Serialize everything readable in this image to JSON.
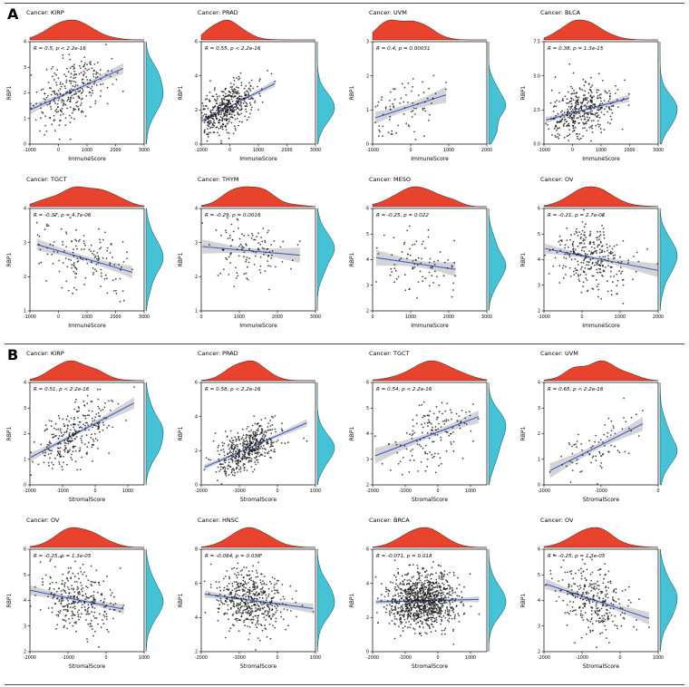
{
  "figure": {
    "sections": [
      {
        "id": "A",
        "label": "A"
      },
      {
        "id": "B",
        "label": "B"
      }
    ]
  },
  "colors": {
    "top_density": "#e8432d",
    "right_density": "#45c2d5",
    "regression_line": "#3f5fd1",
    "ci_band": "#b0b0b0",
    "points": "#1a1a1a"
  },
  "chart_data": [
    {
      "section": "A",
      "type": "scatter",
      "title": "Cancer: KIRP",
      "annotation": "R = 0.5, p < 2.2e-16",
      "r": 0.5,
      "p_label": "< 2.2e-16",
      "xlabel": "ImmuneScore",
      "ylabel": "RBP1",
      "xlim": [
        -1000,
        3000
      ],
      "xticks": [
        -1000,
        0,
        1000,
        2000,
        3000
      ],
      "ylim": [
        0,
        4
      ],
      "yticks": [
        0,
        1,
        2,
        3,
        4
      ],
      "n": 285,
      "cloud": [
        0.35,
        0.5,
        0.17,
        0.17
      ]
    },
    {
      "section": "A",
      "type": "scatter",
      "title": "Cancer: PRAD",
      "annotation": "R = 0.55, p < 2.2e-16",
      "r": 0.55,
      "p_label": "< 2.2e-16",
      "xlabel": "ImmuneScore",
      "ylabel": "RBP1",
      "xlim": [
        -1000,
        3000
      ],
      "xticks": [
        -1000,
        0,
        1000,
        2000,
        3000
      ],
      "ylim": [
        0,
        6
      ],
      "yticks": [
        0,
        2,
        4,
        6
      ],
      "n": 480,
      "cloud": [
        0.22,
        0.35,
        0.13,
        0.13
      ]
    },
    {
      "section": "A",
      "type": "scatter",
      "title": "Cancer: UVM",
      "annotation": "R = 0.4, p = 0.00031",
      "r": 0.4,
      "p_label": "= 0.00031",
      "xlabel": "ImmuneScore",
      "ylabel": "RBP1",
      "xlim": [
        -1000,
        2000
      ],
      "xticks": [
        -1000,
        0,
        1000,
        2000
      ],
      "ylim": [
        0,
        3
      ],
      "yticks": [
        0,
        1,
        2,
        3
      ],
      "n": 80,
      "cloud": [
        0.25,
        0.35,
        0.16,
        0.16
      ]
    },
    {
      "section": "A",
      "type": "scatter",
      "title": "Cancer: BLCA",
      "annotation": "R = 0.38, p = 1.3e-15",
      "r": 0.38,
      "p_label": "= 1.3e-15",
      "xlabel": "ImmuneScore",
      "ylabel": "RBP1",
      "xlim": [
        -1000,
        3000
      ],
      "xticks": [
        -1000,
        0,
        1000,
        2000,
        3000
      ],
      "ylim": [
        0,
        7.5
      ],
      "yticks": [
        0,
        2.5,
        5,
        7.5
      ],
      "n": 400,
      "cloud": [
        0.33,
        0.33,
        0.15,
        0.14
      ]
    },
    {
      "section": "A",
      "type": "scatter",
      "title": "Cancer: TGCT",
      "annotation": "R = -0.37, p = 4.7e-06",
      "r": -0.37,
      "p_label": "= 4.7e-06",
      "xlabel": "ImmuneScore",
      "ylabel": "RBP1",
      "xlim": [
        -1000,
        3000
      ],
      "xticks": [
        -1000,
        0,
        1000,
        2000,
        3000
      ],
      "ylim": [
        1,
        4
      ],
      "yticks": [
        1,
        2,
        3,
        4
      ],
      "n": 150,
      "cloud": [
        0.45,
        0.5,
        0.2,
        0.18
      ]
    },
    {
      "section": "A",
      "type": "scatter",
      "title": "Cancer: THYM",
      "annotation": "R = -0.29, p = 0.0016",
      "r": -0.29,
      "p_label": "= 0.0016",
      "xlabel": "ImmuneScore",
      "ylabel": "RBP1",
      "xlim": [
        0,
        3000
      ],
      "xticks": [
        0,
        1000,
        2000,
        3000
      ],
      "ylim": [
        1,
        4
      ],
      "yticks": [
        1,
        2,
        3,
        4
      ],
      "n": 120,
      "cloud": [
        0.42,
        0.58,
        0.18,
        0.16
      ]
    },
    {
      "section": "A",
      "type": "scatter",
      "title": "Cancer: MESO",
      "annotation": "R = -0.25, p = 0.022",
      "r": -0.25,
      "p_label": "= 0.022",
      "xlabel": "ImmuneScore",
      "ylabel": "RBP1",
      "xlim": [
        0,
        3000
      ],
      "xticks": [
        0,
        1000,
        2000,
        3000
      ],
      "ylim": [
        2,
        6
      ],
      "yticks": [
        2,
        3,
        4,
        5,
        6
      ],
      "n": 85,
      "cloud": [
        0.4,
        0.5,
        0.18,
        0.17
      ]
    },
    {
      "section": "A",
      "type": "scatter",
      "title": "Cancer: OV",
      "annotation": "R = -0.21, p = 2.7e-05",
      "r": -0.21,
      "p_label": "= 2.7e-05",
      "xlabel": "ImmuneScore",
      "ylabel": "RBP1",
      "xlim": [
        -1000,
        2000
      ],
      "xticks": [
        -1000,
        0,
        1000,
        2000
      ],
      "ylim": [
        2,
        6
      ],
      "yticks": [
        2,
        3,
        4,
        5,
        6
      ],
      "n": 300,
      "cloud": [
        0.43,
        0.5,
        0.16,
        0.16
      ]
    },
    {
      "section": "B",
      "type": "scatter",
      "title": "Cancer: KIRP",
      "annotation": "R = 0.51, p < 2.2e-16",
      "r": 0.51,
      "p_label": "< 2.2e-16",
      "xlabel": "StromalScore",
      "ylabel": "RBP1",
      "xlim": [
        -2000,
        1500
      ],
      "xticks": [
        -2000,
        -1000,
        0,
        1000
      ],
      "ylim": [
        0,
        4
      ],
      "yticks": [
        0,
        1,
        2,
        3,
        4
      ],
      "n": 285,
      "cloud": [
        0.4,
        0.5,
        0.16,
        0.17
      ]
    },
    {
      "section": "B",
      "type": "scatter",
      "title": "Cancer: PRAD",
      "annotation": "R = 0.58, p < 2.2e-16",
      "r": 0.58,
      "p_label": "< 2.2e-16",
      "xlabel": "StromalScore",
      "ylabel": "RBP1",
      "xlim": [
        -2000,
        1000
      ],
      "xticks": [
        -2000,
        -1000,
        0,
        1000
      ],
      "ylim": [
        0,
        6
      ],
      "yticks": [
        0,
        2,
        4,
        6
      ],
      "n": 480,
      "cloud": [
        0.4,
        0.35,
        0.14,
        0.13
      ]
    },
    {
      "section": "B",
      "type": "scatter",
      "title": "Cancer: TGCT",
      "annotation": "R = 0.54, p < 2.2e-16",
      "r": 0.54,
      "p_label": "< 2.2e-16",
      "xlabel": "StromalScore",
      "ylabel": "RBP1",
      "xlim": [
        -2000,
        1500
      ],
      "xticks": [
        -2000,
        -1000,
        0,
        1000
      ],
      "ylim": [
        2,
        6
      ],
      "yticks": [
        2,
        3,
        4,
        5,
        6
      ],
      "n": 150,
      "cloud": [
        0.5,
        0.5,
        0.2,
        0.18
      ]
    },
    {
      "section": "B",
      "type": "scatter",
      "title": "Cancer: UVM",
      "annotation": "R = 0.65, p < 2.2e-16",
      "r": 0.65,
      "p_label": "< 2.2e-16",
      "xlabel": "StromalScore",
      "ylabel": "RBP1",
      "xlim": [
        -2000,
        0
      ],
      "xticks": [
        -2000,
        -1000,
        0
      ],
      "ylim": [
        0,
        4
      ],
      "yticks": [
        0,
        1,
        2,
        3,
        4
      ],
      "n": 80,
      "cloud": [
        0.45,
        0.35,
        0.16,
        0.16
      ]
    },
    {
      "section": "B",
      "type": "scatter",
      "title": "Cancer: OV",
      "annotation": "R = -0.25, p = 1.3e-05",
      "r": -0.25,
      "p_label": "= 1.3e-05",
      "xlabel": "StromalScore",
      "ylabel": "RBP1",
      "xlim": [
        -2000,
        1000
      ],
      "xticks": [
        -2000,
        -1000,
        0,
        1000
      ],
      "ylim": [
        2,
        6
      ],
      "yticks": [
        2,
        3,
        4,
        5,
        6
      ],
      "n": 300,
      "cloud": [
        0.43,
        0.5,
        0.16,
        0.16
      ]
    },
    {
      "section": "B",
      "type": "scatter",
      "title": "Cancer: HNSC",
      "annotation": "R = -0.094, p = 0.036",
      "r": -0.094,
      "p_label": "= 0.036",
      "xlabel": "StromalScore",
      "ylabel": "RBP1",
      "xlim": [
        -2000,
        1000
      ],
      "xticks": [
        -2000,
        -1000,
        0,
        1000
      ],
      "ylim": [
        2,
        8
      ],
      "yticks": [
        2,
        4,
        6,
        8
      ],
      "n": 500,
      "cloud": [
        0.43,
        0.5,
        0.15,
        0.15
      ]
    },
    {
      "section": "B",
      "type": "scatter",
      "title": "Cancer: BRCA",
      "annotation": "R = -0.071, p = 0.018",
      "r": -0.071,
      "p_label": "= 0.018",
      "xlabel": "StromalScore",
      "ylabel": "RBP1",
      "xlim": [
        -2000,
        1500
      ],
      "xticks": [
        -2000,
        -1000,
        0,
        1000
      ],
      "ylim": [
        0,
        6
      ],
      "yticks": [
        0,
        2,
        4,
        6
      ],
      "n": 1000,
      "cloud": [
        0.43,
        0.5,
        0.15,
        0.14
      ]
    },
    {
      "section": "B",
      "type": "scatter",
      "title": "Cancer: OV",
      "annotation": "R = -0.25, p = 1.3e-05",
      "r": -0.25,
      "p_label": "= 1.3e-05",
      "xlabel": "StromalScore",
      "ylabel": "RBP1",
      "xlim": [
        -2000,
        1000
      ],
      "xticks": [
        -2000,
        -1000,
        0,
        1000
      ],
      "ylim": [
        2,
        6
      ],
      "yticks": [
        2,
        3,
        4,
        5,
        6
      ],
      "n": 300,
      "cloud": [
        0.43,
        0.5,
        0.16,
        0.16
      ]
    }
  ]
}
